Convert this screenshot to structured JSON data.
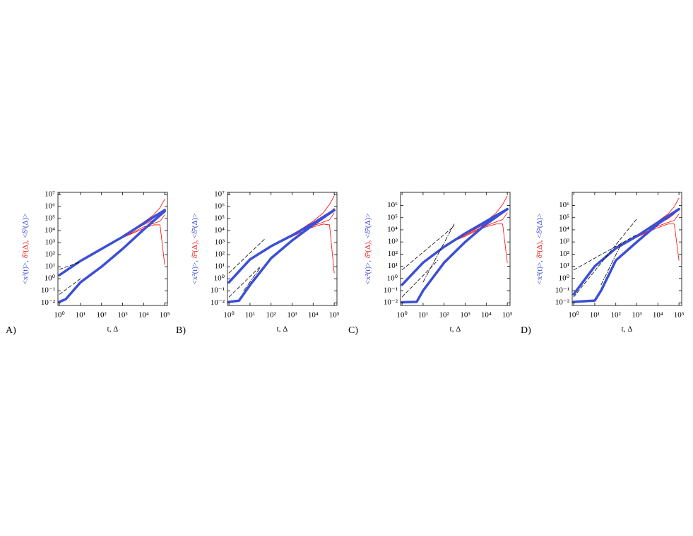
{
  "chart_data": [
    {
      "type": "line",
      "label": "A)",
      "xlabel": "t, Δ",
      "ylabel": [
        {
          "text": "<x²(t)>, ",
          "color": "#3b4fd6"
        },
        {
          "text": "δ̄²(Δ), ",
          "color": "#e8231c"
        },
        {
          "text": "<δ̄²(Δ)>",
          "color": "#3b4fd6"
        }
      ],
      "log_x": true,
      "log_y": true,
      "xlim": [
        0.85,
        135000
      ],
      "ylim": [
        0.006,
        15000000
      ],
      "xticks": [
        {
          "value": 1,
          "label": "10⁰"
        },
        {
          "value": 10,
          "label": "10¹"
        },
        {
          "value": 100,
          "label": "10²"
        },
        {
          "value": 1000,
          "label": "10³"
        },
        {
          "value": 10000,
          "label": "10⁴"
        },
        {
          "value": 100000,
          "label": "10⁵"
        }
      ],
      "yticks": [
        {
          "value": 0.01,
          "label": "10⁻²"
        },
        {
          "value": 0.1,
          "label": "10⁻¹"
        },
        {
          "value": 1,
          "label": "10⁰"
        },
        {
          "value": 10,
          "label": "10¹"
        },
        {
          "value": 100,
          "label": "10²"
        },
        {
          "value": 1000,
          "label": "10³"
        },
        {
          "value": 10000,
          "label": "10⁴"
        },
        {
          "value": 100000,
          "label": "10⁵"
        },
        {
          "value": 1000000,
          "label": "10⁶"
        },
        {
          "value": 10000000,
          "label": "10⁷"
        }
      ],
      "series": [
        {
          "color": "#ff0000",
          "style": "solid",
          "width": 0.8,
          "x": [
            100,
            300,
            1000,
            3000,
            10000,
            30000,
            60000,
            100000
          ],
          "values": [
            300,
            1000,
            3000,
            12000,
            50000,
            200000,
            800000,
            4000000
          ]
        },
        {
          "color": "#ff0000",
          "style": "solid",
          "width": 0.8,
          "x": [
            100,
            300,
            1000,
            3000,
            10000,
            30000,
            60000,
            100000
          ],
          "values": [
            300,
            1000,
            3000,
            9000,
            30000,
            80000,
            200000,
            500000
          ]
        },
        {
          "color": "#ff0000",
          "style": "solid",
          "width": 0.8,
          "x": [
            100,
            300,
            1000,
            3000,
            10000,
            30000,
            60000,
            100000
          ],
          "values": [
            300,
            900,
            2800,
            7000,
            20000,
            40000,
            60000,
            200000
          ]
        },
        {
          "color": "#ff0000",
          "style": "solid",
          "width": 0.8,
          "x": [
            100,
            300,
            1000,
            3000,
            10000,
            30000,
            60000,
            100000
          ],
          "values": [
            300,
            900,
            2500,
            6000,
            15000,
            30000,
            30000,
            15
          ]
        },
        {
          "color": "#3b4fd6",
          "style": "solid",
          "width": 3.5,
          "x": [
            1,
            10,
            100,
            1000,
            10000,
            100000
          ],
          "values": [
            2,
            30,
            300,
            3000,
            40000,
            500000
          ]
        },
        {
          "color": "#3b4fd6",
          "style": "solid",
          "width": 3.5,
          "x": [
            1,
            2,
            10,
            100,
            1000,
            10000,
            100000
          ],
          "values": [
            0.012,
            0.02,
            0.5,
            10,
            300,
            12000,
            400000
          ]
        },
        {
          "color": "#000000",
          "style": "dashed",
          "width": 0.8,
          "x": [
            1,
            10
          ],
          "values": [
            0.05,
            1
          ]
        },
        {
          "color": "#000000",
          "style": "dashed",
          "width": 0.8,
          "x": [
            1,
            10
          ],
          "values": [
            6,
            25
          ]
        }
      ]
    },
    {
      "type": "line",
      "label": "B)",
      "xlabel": "t, Δ",
      "ylabel": [
        {
          "text": "<x²(t)>, ",
          "color": "#3b4fd6"
        },
        {
          "text": "δ̄²(Δ), ",
          "color": "#e8231c"
        },
        {
          "text": "<δ̄²(Δ)>",
          "color": "#3b4fd6"
        }
      ],
      "log_x": true,
      "log_y": true,
      "xlim": [
        0.85,
        135000
      ],
      "ylim": [
        0.006,
        15000000
      ],
      "xticks": [
        {
          "value": 1,
          "label": "10⁰"
        },
        {
          "value": 10,
          "label": "10¹"
        },
        {
          "value": 100,
          "label": "10²"
        },
        {
          "value": 1000,
          "label": "10³"
        },
        {
          "value": 10000,
          "label": "10⁴"
        },
        {
          "value": 100000,
          "label": "10⁵"
        }
      ],
      "yticks": [
        {
          "value": 0.01,
          "label": "10⁻²"
        },
        {
          "value": 0.1,
          "label": "10⁻¹"
        },
        {
          "value": 1,
          "label": "10⁰"
        },
        {
          "value": 10,
          "label": "10¹"
        },
        {
          "value": 100,
          "label": "10²"
        },
        {
          "value": 1000,
          "label": "10³"
        },
        {
          "value": 10000,
          "label": "10⁴"
        },
        {
          "value": 100000,
          "label": "10⁵"
        },
        {
          "value": 1000000,
          "label": "10⁶"
        },
        {
          "value": 10000000,
          "label": "10⁷"
        }
      ],
      "series": [
        {
          "color": "#ff0000",
          "style": "solid",
          "width": 0.8,
          "x": [
            100,
            300,
            1000,
            3000,
            10000,
            30000,
            60000,
            100000
          ],
          "values": [
            500,
            1500,
            4000,
            15000,
            60000,
            300000,
            1500000,
            8000000
          ]
        },
        {
          "color": "#ff0000",
          "style": "solid",
          "width": 0.8,
          "x": [
            100,
            300,
            1000,
            3000,
            10000,
            30000,
            60000,
            100000
          ],
          "values": [
            500,
            1500,
            4000,
            12000,
            40000,
            100000,
            300000,
            700000
          ]
        },
        {
          "color": "#ff0000",
          "style": "solid",
          "width": 0.8,
          "x": [
            100,
            300,
            1000,
            3000,
            10000,
            30000,
            60000,
            100000
          ],
          "values": [
            500,
            1400,
            3500,
            10000,
            25000,
            50000,
            80000,
            300000
          ]
        },
        {
          "color": "#ff0000",
          "style": "solid",
          "width": 0.8,
          "x": [
            100,
            300,
            1000,
            3000,
            10000,
            30000,
            60000,
            100000
          ],
          "values": [
            500,
            1400,
            3200,
            8000,
            20000,
            35000,
            30000,
            3
          ]
        },
        {
          "color": "#3b4fd6",
          "style": "solid",
          "width": 3.5,
          "x": [
            1,
            10,
            100,
            1000,
            10000,
            100000
          ],
          "values": [
            0.5,
            40,
            500,
            4000,
            40000,
            500000
          ]
        },
        {
          "color": "#3b4fd6",
          "style": "solid",
          "width": 3.5,
          "x": [
            1,
            3,
            10,
            100,
            1000,
            10000,
            100000
          ],
          "values": [
            0.012,
            0.015,
            0.3,
            50,
            1500,
            30000,
            500000
          ]
        },
        {
          "color": "#000000",
          "style": "dashed",
          "width": 0.8,
          "x": [
            1,
            50
          ],
          "values": [
            3,
            2000
          ]
        },
        {
          "color": "#000000",
          "style": "dashed",
          "width": 0.8,
          "x": [
            1,
            30
          ],
          "values": [
            0.03,
            10
          ]
        },
        {
          "color": "#000000",
          "style": "dashdot",
          "width": 0.8,
          "x": [
            5,
            30
          ],
          "values": [
            0.1,
            8
          ]
        }
      ]
    },
    {
      "type": "line",
      "label": "C)",
      "xlabel": "t, Δ",
      "ylabel": [
        {
          "text": "<x²(t)>, ",
          "color": "#3b4fd6"
        },
        {
          "text": "δ̄²(Δ), ",
          "color": "#e8231c"
        },
        {
          "text": "<δ̄²(Δ)>",
          "color": "#3b4fd6"
        }
      ],
      "log_x": true,
      "log_y": true,
      "xlim": [
        0.85,
        135000
      ],
      "ylim": [
        0.006,
        12000000
      ],
      "xticks": [
        {
          "value": 1,
          "label": "10⁰"
        },
        {
          "value": 10,
          "label": "10¹"
        },
        {
          "value": 100,
          "label": "10²"
        },
        {
          "value": 1000,
          "label": "10³"
        },
        {
          "value": 10000,
          "label": "10⁴"
        },
        {
          "value": 100000,
          "label": "10⁵"
        }
      ],
      "yticks": [
        {
          "value": 0.01,
          "label": "10⁻²"
        },
        {
          "value": 0.1,
          "label": "10⁻¹"
        },
        {
          "value": 1,
          "label": "10⁰"
        },
        {
          "value": 10,
          "label": "10¹"
        },
        {
          "value": 100,
          "label": "10²"
        },
        {
          "value": 1000,
          "label": "10³"
        },
        {
          "value": 10000,
          "label": "10⁴"
        },
        {
          "value": 100000,
          "label": "10⁵"
        },
        {
          "value": 1000000,
          "label": "10⁶"
        }
      ],
      "series": [
        {
          "color": "#ff0000",
          "style": "solid",
          "width": 0.8,
          "x": [
            100,
            300,
            1000,
            3000,
            10000,
            30000,
            60000,
            100000
          ],
          "values": [
            400,
            1300,
            4000,
            14000,
            50000,
            250000,
            1200000,
            6000000
          ]
        },
        {
          "color": "#ff0000",
          "style": "solid",
          "width": 0.8,
          "x": [
            100,
            300,
            1000,
            3000,
            10000,
            30000,
            60000,
            100000
          ],
          "values": [
            400,
            1300,
            4000,
            11000,
            35000,
            90000,
            250000,
            600000
          ]
        },
        {
          "color": "#ff0000",
          "style": "solid",
          "width": 0.8,
          "x": [
            100,
            300,
            1000,
            3000,
            10000,
            30000,
            60000,
            100000
          ],
          "values": [
            400,
            1200,
            3500,
            9000,
            22000,
            45000,
            70000,
            250000
          ]
        },
        {
          "color": "#ff0000",
          "style": "solid",
          "width": 0.8,
          "x": [
            100,
            300,
            1000,
            3000,
            10000,
            30000,
            60000,
            100000
          ],
          "values": [
            400,
            1200,
            3000,
            7500,
            18000,
            30000,
            30000,
            20
          ]
        },
        {
          "color": "#3b4fd6",
          "style": "solid",
          "width": 3.5,
          "x": [
            1,
            10,
            100,
            1000,
            10000,
            100000
          ],
          "values": [
            0.3,
            20,
            400,
            5000,
            50000,
            500000
          ]
        },
        {
          "color": "#3b4fd6",
          "style": "solid",
          "width": 3.5,
          "x": [
            1,
            5,
            10,
            100,
            1000,
            10000,
            100000
          ],
          "values": [
            0.011,
            0.012,
            0.1,
            20,
            1000,
            30000,
            500000
          ]
        },
        {
          "color": "#000000",
          "style": "dashed",
          "width": 0.8,
          "x": [
            1,
            300
          ],
          "values": [
            5,
            20000
          ]
        },
        {
          "color": "#000000",
          "style": "dashed",
          "width": 0.8,
          "x": [
            1,
            50
          ],
          "values": [
            0.03,
            30
          ]
        },
        {
          "color": "#000000",
          "style": "dashdot",
          "width": 0.8,
          "x": [
            10,
            300
          ],
          "values": [
            0.5,
            30000
          ]
        }
      ]
    },
    {
      "type": "line",
      "label": "D)",
      "xlabel": "t, Δ",
      "ylabel": [
        {
          "text": "<x²(t)>, ",
          "color": "#3b4fd6"
        },
        {
          "text": "δ̄²(Δ), ",
          "color": "#e8231c"
        },
        {
          "text": "<δ̄²(Δ)>",
          "color": "#3b4fd6"
        }
      ],
      "log_x": true,
      "log_y": true,
      "xlim": [
        0.85,
        135000
      ],
      "ylim": [
        0.006,
        12000000
      ],
      "xticks": [
        {
          "value": 1,
          "label": "10⁰"
        },
        {
          "value": 10,
          "label": "10¹"
        },
        {
          "value": 100,
          "label": "10²"
        },
        {
          "value": 1000,
          "label": "10³"
        },
        {
          "value": 10000,
          "label": "10⁴"
        },
        {
          "value": 100000,
          "label": "10⁵"
        }
      ],
      "yticks": [
        {
          "value": 0.01,
          "label": "10⁻²"
        },
        {
          "value": 0.1,
          "label": "10⁻¹"
        },
        {
          "value": 1,
          "label": "10⁰"
        },
        {
          "value": 10,
          "label": "10¹"
        },
        {
          "value": 100,
          "label": "10²"
        },
        {
          "value": 1000,
          "label": "10³"
        },
        {
          "value": 10000,
          "label": "10⁴"
        },
        {
          "value": 100000,
          "label": "10⁵"
        },
        {
          "value": 1000000,
          "label": "10⁶"
        }
      ],
      "series": [
        {
          "color": "#ff0000",
          "style": "solid",
          "width": 0.8,
          "x": [
            200,
            300,
            1000,
            3000,
            10000,
            30000,
            60000,
            100000
          ],
          "values": [
            500,
            900,
            3000,
            12000,
            50000,
            200000,
            800000,
            4000000
          ]
        },
        {
          "color": "#ff0000",
          "style": "solid",
          "width": 0.8,
          "x": [
            200,
            300,
            1000,
            3000,
            10000,
            30000,
            60000,
            100000
          ],
          "values": [
            500,
            900,
            3000,
            9000,
            30000,
            80000,
            200000,
            500000
          ]
        },
        {
          "color": "#ff0000",
          "style": "solid",
          "width": 0.8,
          "x": [
            200,
            300,
            1000,
            3000,
            10000,
            30000,
            60000,
            100000
          ],
          "values": [
            500,
            850,
            2800,
            7000,
            20000,
            40000,
            60000,
            200000
          ]
        },
        {
          "color": "#ff0000",
          "style": "solid",
          "width": 0.8,
          "x": [
            200,
            300,
            1000,
            3000,
            10000,
            30000,
            60000,
            100000
          ],
          "values": [
            500,
            850,
            2500,
            6000,
            15000,
            30000,
            30000,
            30
          ]
        },
        {
          "color": "#3b4fd6",
          "style": "solid",
          "width": 3.5,
          "x": [
            1,
            10,
            100,
            1000,
            10000,
            100000
          ],
          "values": [
            0.05,
            10,
            300,
            3000,
            40000,
            500000
          ]
        },
        {
          "color": "#3b4fd6",
          "style": "solid",
          "width": 3.5,
          "x": [
            1,
            10,
            20,
            100,
            1000,
            10000,
            100000
          ],
          "values": [
            0.012,
            0.015,
            0.1,
            30,
            1000,
            30000,
            500000
          ]
        },
        {
          "color": "#000000",
          "style": "dashed",
          "width": 0.8,
          "x": [
            1,
            1000
          ],
          "values": [
            5,
            4000
          ]
        },
        {
          "color": "#000000",
          "style": "dashed",
          "width": 0.8,
          "x": [
            1,
            1000
          ],
          "values": [
            0.03,
            80000
          ]
        },
        {
          "color": "#000000",
          "style": "dashdot",
          "width": 0.8,
          "x": [
            20,
            200
          ],
          "values": [
            0.3,
            1000
          ]
        }
      ]
    }
  ]
}
